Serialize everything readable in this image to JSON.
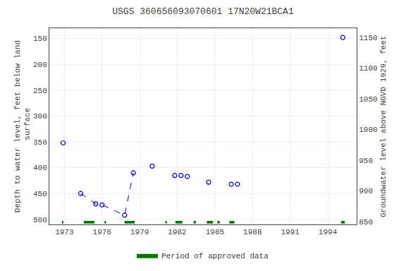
{
  "chart_data": {
    "type": "scatter",
    "title": "USGS 360656093070601 17N20W21BCA1",
    "ylabel": "Depth to water level, feet below land\n surface",
    "y2label": "Groundwater level above NGVD 1929, feet",
    "xlim": [
      1971.8,
      1996.3
    ],
    "xticks": [
      1973,
      1976,
      1979,
      1982,
      1985,
      1988,
      1991,
      1994
    ],
    "ylim": [
      510,
      130
    ],
    "yticks": [
      150,
      200,
      250,
      300,
      350,
      400,
      450,
      500
    ],
    "y2lim": [
      845,
      1165
    ],
    "y2ticks": [
      1150,
      1100,
      1050,
      1000,
      950,
      900,
      850
    ],
    "grid": true,
    "legend": "bottom",
    "series": [
      {
        "type": "scatter",
        "marker": "open circle",
        "color": "#0000cc",
        "x": [
          1972.9,
          1974.3,
          1975.5,
          1976.0,
          1977.8,
          1978.5,
          1980.0,
          1981.8,
          1982.3,
          1982.8,
          1984.5,
          1986.3,
          1986.8,
          1995.2
        ],
        "values": [
          352,
          450,
          470,
          472,
          492,
          410,
          397,
          415,
          415,
          417,
          428,
          432,
          432,
          148
        ]
      },
      {
        "type": "line",
        "line_style": "dashed",
        "color": "#0000cc",
        "x": [
          1974.3,
          1975.5,
          1976.0,
          1977.8,
          1978.5
        ],
        "values": [
          450,
          470,
          472,
          492,
          410
        ]
      },
      {
        "type": "bar",
        "name": "Period of approved data",
        "color": "#007700",
        "x": [
          1972.8,
          1974.55,
          1976.2,
          1977.8,
          1981.05,
          1981.85,
          1983.3,
          1984.35,
          1985.2,
          1986.15,
          1995.05
        ],
        "widths": [
          0.12,
          0.85,
          0.12,
          0.8,
          0.12,
          0.55,
          0.18,
          0.5,
          0.18,
          0.4,
          0.3
        ],
        "bottom": 503,
        "top": 508
      }
    ]
  }
}
